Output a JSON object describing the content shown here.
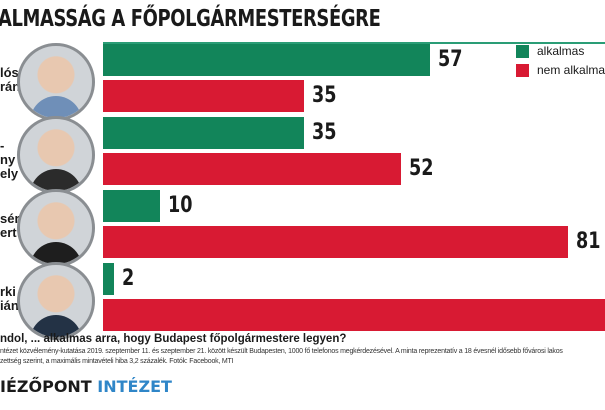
{
  "chart_data": {
    "type": "bar",
    "orientation": "horizontal",
    "title": "ALMASSÁG A FŐPOLGÁRMESTERSÉGRE",
    "categories": [
      [
        "lós",
        "rán"
      ],
      [
        "-ny",
        "ely"
      ],
      [
        "sér",
        "ert"
      ],
      [
        "rki",
        "ián"
      ]
    ],
    "series": [
      {
        "name": "alkalmas",
        "color": "#12855a",
        "values": [
          57,
          35,
          10,
          2
        ]
      },
      {
        "name": "nem alkalmas",
        "color": "#d81a33",
        "values": [
          35,
          52,
          81,
          null
        ]
      }
    ],
    "legend": "top-right",
    "grid": false
  },
  "footer": {
    "question": "ndol, ... alkalmas arra, hogy Budapest főpolgármestere legyen?",
    "note1": "ntézet közvélemény-kutatása 2019. szeptember 11. és szeptember 21. között készült Budapesten, 1000 fő telefonos megkérdezésével. A minta reprezentatív a 18 évesnél idősebb fővárosi lakos",
    "note2": "zettség szerint, a maximális mintavételi hiba 3,2 százalék. Fotók: Facebook, MTI",
    "logo_a": "IÉZŐPONT",
    "logo_b": "INTÉZET"
  }
}
